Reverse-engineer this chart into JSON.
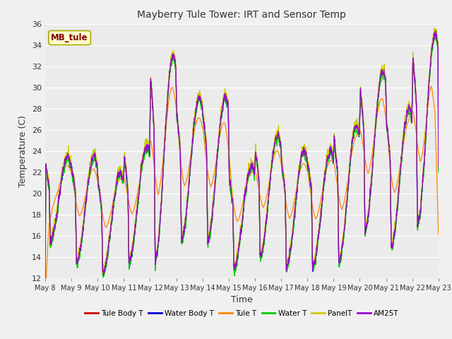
{
  "title": "Mayberry Tule Tower: IRT and Sensor Temp",
  "xlabel": "Time",
  "ylabel": "Temperature (C)",
  "ylim": [
    12,
    36
  ],
  "yticks": [
    12,
    14,
    16,
    18,
    20,
    22,
    24,
    26,
    28,
    30,
    32,
    34,
    36
  ],
  "fig_bg_color": "#f0f0f0",
  "plot_bg_color": "#ebebeb",
  "grid_color": "#ffffff",
  "annotation_text": "MB_tule",
  "annotation_color": "#800000",
  "annotation_bg": "#ffffcc",
  "annotation_edge": "#aaaa00",
  "series": [
    {
      "label": "Tule Body T",
      "color": "#cc0000"
    },
    {
      "label": "Water Body T",
      "color": "#0000cc"
    },
    {
      "label": "Tule T",
      "color": "#ff8800"
    },
    {
      "label": "Water T",
      "color": "#00cc00"
    },
    {
      "label": "PanelT",
      "color": "#cccc00"
    },
    {
      "label": "AM25T",
      "color": "#9900cc"
    }
  ],
  "n_days": 15,
  "ppd": 144,
  "start_day": 8,
  "day_peaks": [
    23.5,
    23.5,
    22.0,
    24.5,
    33.0,
    29.0,
    29.0,
    22.5,
    25.5,
    24.0,
    24.0,
    26.5,
    31.5,
    28.0,
    35.0
  ],
  "day_mins": [
    15.5,
    13.5,
    12.5,
    13.5,
    13.5,
    15.5,
    15.5,
    13.0,
    14.0,
    13.0,
    13.0,
    13.5,
    16.5,
    15.0,
    17.0
  ]
}
